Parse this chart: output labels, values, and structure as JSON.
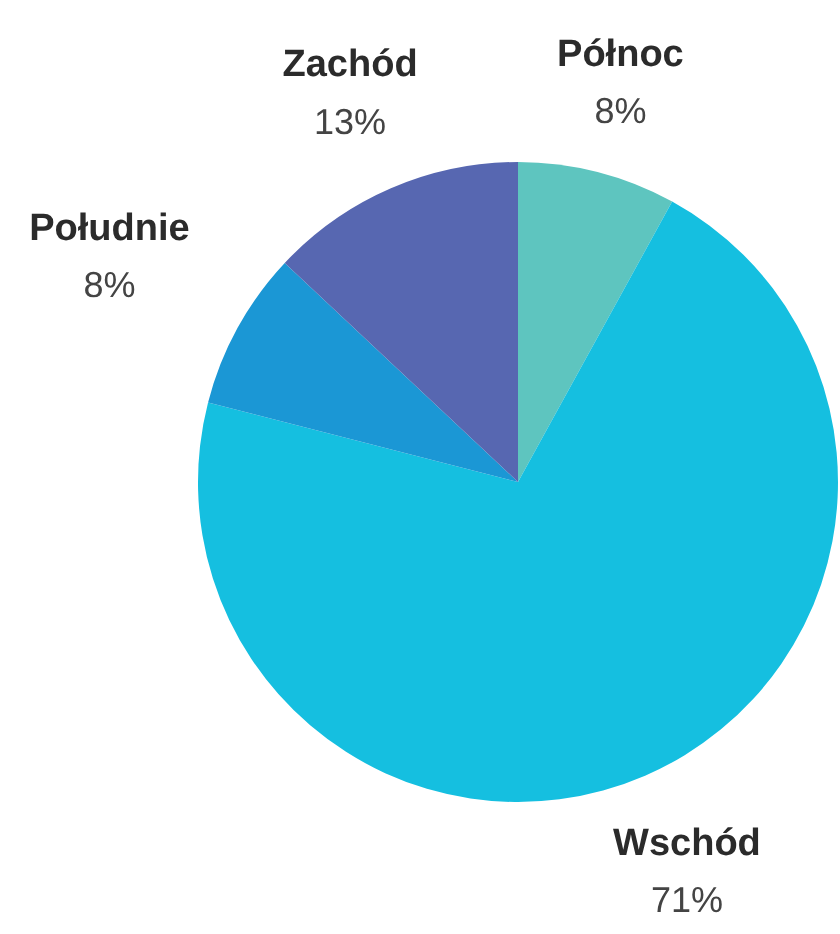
{
  "chart_data": {
    "type": "pie",
    "categories": [
      "Północ",
      "Wschód",
      "Południe",
      "Zachód"
    ],
    "values": [
      8,
      71,
      8,
      13
    ],
    "colors": [
      "#5ec5bf",
      "#15bfe0",
      "#1b97d5",
      "#5767b1"
    ],
    "value_labels": [
      "8%",
      "71%",
      "8%",
      "13%"
    ]
  }
}
